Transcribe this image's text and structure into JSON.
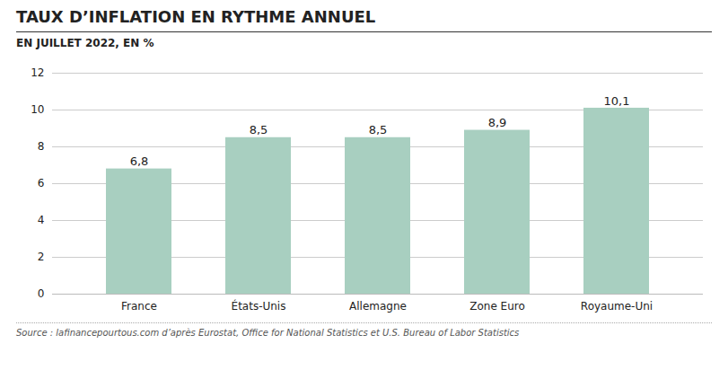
{
  "chart_data": {
    "type": "bar",
    "title": "TAUX D’INFLATION EN RYTHME ANNUEL",
    "subtitle": "EN JUILLET 2022, EN %",
    "source": "Source : lafinancepourtous.com d’après Eurostat, Office for National Statistics et U.S. Bureau of Labor Statistics",
    "categories": [
      "France",
      "États-Unis",
      "Allemagne",
      "Zone Euro",
      "Royaume-Uni"
    ],
    "values": [
      6.8,
      8.5,
      8.5,
      8.9,
      10.1
    ],
    "value_labels": [
      "6,8",
      "8,5",
      "8,5",
      "8,9",
      "10,1"
    ],
    "data_labels": true,
    "color": "#a8cfc0",
    "ylim": [
      0,
      12
    ],
    "yticks": [
      0,
      2,
      4,
      6,
      8,
      10,
      12
    ],
    "grid": true
  }
}
